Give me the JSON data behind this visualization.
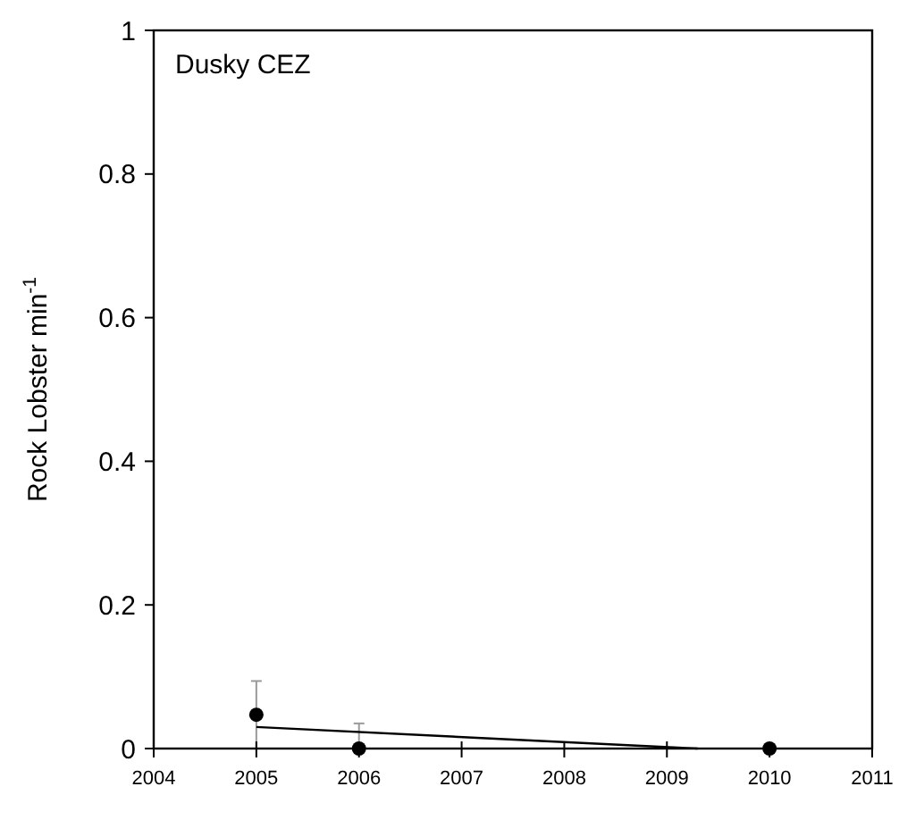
{
  "chart_data": {
    "type": "scatter",
    "ylabel": "Rock Lobster min$^{-1}$",
    "annotations": [
      "Dusky CEZ"
    ],
    "xlim": [
      2004,
      2011
    ],
    "xticks": [
      2004,
      2005,
      2006,
      2007,
      2008,
      2009,
      2010,
      2011
    ],
    "ylim": [
      0,
      1
    ],
    "yticks": [
      0,
      0.2,
      0.4,
      0.6,
      0.8,
      1
    ],
    "grid": false,
    "marker": "circle",
    "series": [
      {
        "color": "#000000",
        "x": [
          2005,
          2006,
          2010
        ],
        "values": [
          0.047,
          0,
          0
        ],
        "errors": [
          [
            0,
            0.094
          ],
          [
            0,
            0.035
          ],
          null
        ]
      },
      {
        "type": "line",
        "color": "#000000",
        "x": [
          2005,
          2009.3
        ],
        "values": [
          0.03,
          0
        ],
        "marker": "none",
        "line_style": "solid"
      }
    ]
  }
}
